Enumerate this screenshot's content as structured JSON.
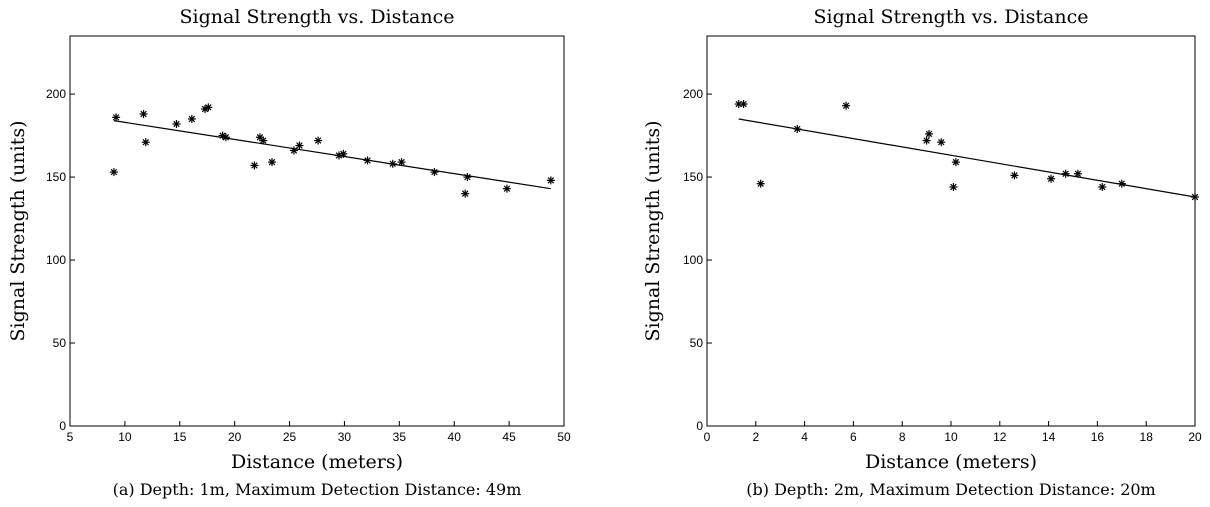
{
  "chart_data": [
    {
      "type": "scatter",
      "title": "Signal Strength vs. Distance",
      "xlabel": "Distance (meters)",
      "ylabel": "Signal Strength (units)",
      "caption": "(a) Depth: 1m, Maximum Detection Distance: 49m",
      "xlim": [
        5,
        50
      ],
      "ylim": [
        0,
        235
      ],
      "xticks": [
        5,
        10,
        15,
        20,
        25,
        30,
        35,
        40,
        45,
        50
      ],
      "yticks": [
        0,
        50,
        100,
        150,
        200
      ],
      "marker": "asterisk",
      "grid": false,
      "points": [
        [
          9.0,
          153
        ],
        [
          9.2,
          186
        ],
        [
          11.7,
          188
        ],
        [
          11.9,
          171
        ],
        [
          14.7,
          182
        ],
        [
          16.1,
          185
        ],
        [
          17.3,
          191
        ],
        [
          17.6,
          192
        ],
        [
          18.9,
          175
        ],
        [
          19.2,
          174
        ],
        [
          21.8,
          157
        ],
        [
          22.3,
          174
        ],
        [
          22.6,
          172
        ],
        [
          23.4,
          159
        ],
        [
          25.4,
          166
        ],
        [
          25.9,
          169
        ],
        [
          27.6,
          172
        ],
        [
          29.5,
          163
        ],
        [
          29.9,
          164
        ],
        [
          32.1,
          160
        ],
        [
          34.4,
          158
        ],
        [
          35.2,
          159
        ],
        [
          38.2,
          153
        ],
        [
          41.0,
          140
        ],
        [
          41.2,
          150
        ],
        [
          44.8,
          143
        ],
        [
          48.8,
          148
        ]
      ],
      "fit_line": {
        "x": [
          9.0,
          48.8
        ],
        "y": [
          184,
          143
        ]
      }
    },
    {
      "type": "scatter",
      "title": "Signal Strength vs. Distance",
      "xlabel": "Distance (meters)",
      "ylabel": "Signal Strength (units)",
      "caption": "(b) Depth: 2m, Maximum Detection Distance: 20m",
      "xlim": [
        0,
        20
      ],
      "ylim": [
        0,
        235
      ],
      "xticks": [
        0,
        2,
        4,
        6,
        8,
        10,
        12,
        14,
        16,
        18,
        20
      ],
      "yticks": [
        0,
        50,
        100,
        150,
        200
      ],
      "marker": "asterisk",
      "grid": false,
      "points": [
        [
          1.3,
          194
        ],
        [
          1.5,
          194
        ],
        [
          2.2,
          146
        ],
        [
          3.7,
          179
        ],
        [
          5.7,
          193
        ],
        [
          9.0,
          172
        ],
        [
          9.1,
          176
        ],
        [
          9.6,
          171
        ],
        [
          10.1,
          144
        ],
        [
          10.2,
          159
        ],
        [
          12.6,
          151
        ],
        [
          14.1,
          149
        ],
        [
          14.7,
          152
        ],
        [
          15.2,
          152
        ],
        [
          16.2,
          144
        ],
        [
          17.0,
          146
        ],
        [
          20.0,
          138
        ]
      ],
      "fit_line": {
        "x": [
          1.3,
          20.0
        ],
        "y": [
          185,
          138
        ]
      }
    }
  ]
}
